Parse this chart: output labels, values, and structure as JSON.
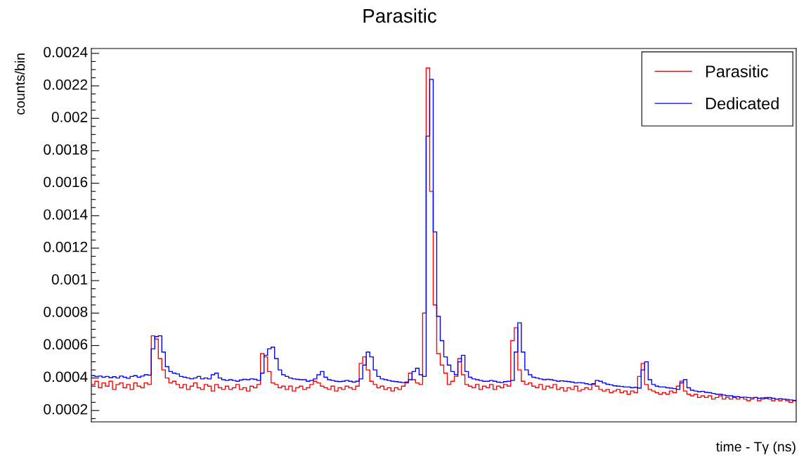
{
  "chart_data": {
    "type": "step",
    "title": "Parasitic",
    "xlabel": "time - Tγ (ns)",
    "ylabel": "counts/bin",
    "categories": [
      null,
      null,
      null,
      null,
      null,
      null,
      null,
      null,
      null,
      null,
      null,
      null,
      null,
      null,
      null,
      null,
      null,
      null,
      null,
      null,
      null,
      null,
      null,
      null,
      null,
      null,
      null,
      null,
      null,
      null,
      null,
      null,
      null,
      null,
      null,
      null,
      null,
      null,
      null,
      null,
      null,
      null,
      null,
      null,
      null,
      null,
      null,
      null,
      null,
      null,
      null,
      null,
      null,
      null,
      null,
      null,
      null,
      null,
      null,
      null,
      null,
      null,
      null,
      null,
      null,
      null,
      null,
      null,
      null,
      null,
      null,
      null,
      null,
      null,
      null,
      null,
      null,
      null,
      null,
      null,
      null,
      null,
      null,
      null,
      null,
      null,
      null,
      null,
      null,
      null,
      null,
      null,
      null,
      null,
      null,
      null,
      null,
      null,
      null,
      null,
      null,
      null,
      null,
      null,
      null,
      null,
      null,
      null,
      null,
      null,
      null,
      null,
      null,
      null,
      null,
      null,
      null,
      null,
      null,
      null,
      null,
      null,
      null,
      null,
      null,
      null,
      null,
      null,
      null,
      null,
      null,
      null,
      null,
      null,
      null,
      null,
      null,
      null,
      null,
      null,
      null,
      null,
      null,
      null,
      null,
      null,
      null,
      null,
      null,
      null,
      null,
      null,
      null,
      null,
      null,
      null,
      null,
      null,
      null,
      null,
      null,
      null,
      null,
      null,
      null,
      null,
      null,
      null,
      null,
      null,
      null,
      null,
      null,
      null,
      null,
      null,
      null,
      null,
      null,
      null,
      null,
      null,
      null,
      null,
      null,
      null,
      null,
      null,
      null,
      null,
      null,
      null,
      null,
      null,
      null,
      null,
      null,
      null,
      null,
      null
    ],
    "series": [
      {
        "name": "Parasitic",
        "color": "#ff0000",
        "values": [
          0.00036,
          0.00038,
          0.00034,
          0.00037,
          0.00035,
          0.00038,
          0.00033,
          0.00036,
          0.00037,
          0.00034,
          0.00036,
          0.00033,
          0.00037,
          0.00035,
          0.00034,
          0.00037,
          0.00036,
          0.00066,
          0.00064,
          0.00052,
          0.00045,
          0.0004,
          0.00037,
          0.00038,
          0.00036,
          0.00034,
          0.00036,
          0.00033,
          0.00035,
          0.00037,
          0.00034,
          0.00033,
          0.00036,
          0.00035,
          0.00032,
          0.00036,
          0.00034,
          0.00033,
          0.00035,
          0.00033,
          0.00034,
          0.00036,
          0.00033,
          0.00034,
          0.00032,
          0.00035,
          0.00034,
          0.00036,
          0.00055,
          0.00053,
          0.00044,
          0.00037,
          0.00036,
          0.00034,
          0.00035,
          0.00033,
          0.00035,
          0.00032,
          0.00034,
          0.00035,
          0.00033,
          0.00034,
          0.00036,
          0.00038,
          0.00037,
          0.00035,
          0.00034,
          0.00033,
          0.00035,
          0.00032,
          0.00034,
          0.00033,
          0.00035,
          0.00034,
          0.00033,
          0.00035,
          0.00049,
          0.00053,
          0.00045,
          0.00038,
          0.00036,
          0.00034,
          0.00035,
          0.00033,
          0.00034,
          0.00032,
          0.00034,
          0.00033,
          0.00035,
          0.00037,
          0.00043,
          0.00039,
          0.00037,
          0.00036,
          0.0008,
          0.00231,
          0.00155,
          0.00085,
          0.00055,
          0.00048,
          0.00043,
          0.00036,
          0.00038,
          0.00041,
          0.00052,
          0.00042,
          0.00036,
          0.00035,
          0.00034,
          0.00036,
          0.00033,
          0.00035,
          0.00034,
          0.00036,
          0.00033,
          0.00035,
          0.00034,
          0.00036,
          0.00035,
          0.00063,
          0.00071,
          0.00045,
          0.00038,
          0.00036,
          0.00037,
          0.00035,
          0.00034,
          0.00036,
          0.00033,
          0.00035,
          0.00034,
          0.00036,
          0.00033,
          0.00034,
          0.00032,
          0.00034,
          0.00033,
          0.00035,
          0.00032,
          0.00033,
          0.00034,
          0.00033,
          0.00036,
          0.00035,
          0.00033,
          0.00032,
          0.00033,
          0.00031,
          0.00032,
          0.00033,
          0.00031,
          0.00032,
          0.0003,
          0.00032,
          0.00031,
          0.00041,
          0.00049,
          0.00036,
          0.00033,
          0.00032,
          0.00031,
          0.0003,
          0.00031,
          0.0003,
          0.00032,
          0.00031,
          0.00035,
          0.00038,
          0.00032,
          0.0003,
          0.00029,
          0.0003,
          0.00028,
          0.00029,
          0.00028,
          0.00029,
          0.00027,
          0.00028,
          0.00029,
          0.00027,
          0.00028,
          0.00027,
          0.00028,
          0.00027,
          0.00028,
          0.00027,
          0.00026,
          0.00027,
          0.00028,
          0.00026,
          0.00027,
          0.00028,
          0.00027,
          0.00026,
          0.00027,
          0.00026,
          0.00027,
          0.00026,
          0.00025,
          0.00026
        ]
      },
      {
        "name": "Dedicated",
        "color": "#0000ff",
        "values": [
          0.000415,
          0.00041,
          0.000412,
          0.000405,
          0.00041,
          0.000402,
          0.000408,
          0.0004,
          0.000412,
          0.000405,
          0.000398,
          0.00041,
          0.000415,
          0.000405,
          0.000412,
          0.00042,
          0.000418,
          0.00058,
          0.000655,
          0.00066,
          0.00056,
          0.00047,
          0.00044,
          0.00043,
          0.000425,
          0.00041,
          0.000405,
          0.0004,
          0.000395,
          0.0004,
          0.00041,
          0.000395,
          0.0004,
          0.000395,
          0.00042,
          0.00043,
          0.0004,
          0.00039,
          0.000385,
          0.00039,
          0.000385,
          0.00038,
          0.000388,
          0.000392,
          0.00039,
          0.000395,
          0.000392,
          0.000385,
          0.00043,
          0.00054,
          0.00058,
          0.00059,
          0.00052,
          0.00045,
          0.00042,
          0.00041,
          0.0004,
          0.000395,
          0.000392,
          0.00039,
          0.00039,
          0.00038,
          0.000385,
          0.000395,
          0.00042,
          0.00044,
          0.000405,
          0.00039,
          0.000385,
          0.00038,
          0.000378,
          0.00038,
          0.000385,
          0.00038,
          0.000375,
          0.00038,
          0.000395,
          0.00048,
          0.00056,
          0.00053,
          0.00045,
          0.00041,
          0.000395,
          0.00039,
          0.000385,
          0.00038,
          0.000378,
          0.000375,
          0.000372,
          0.000375,
          0.00039,
          0.00044,
          0.00046,
          0.00042,
          0.00041,
          0.00189,
          0.00224,
          0.0013,
          0.00078,
          0.00063,
          0.00053,
          0.00048,
          0.00044,
          0.00042,
          0.0005,
          0.00054,
          0.00044,
          0.000405,
          0.000395,
          0.00039,
          0.000385,
          0.00038,
          0.00038,
          0.000385,
          0.00038,
          0.000375,
          0.000372,
          0.000378,
          0.00038,
          0.000385,
          0.00056,
          0.00074,
          0.00056,
          0.00045,
          0.00042,
          0.000405,
          0.0004,
          0.000395,
          0.00039,
          0.000392,
          0.00039,
          0.000385,
          0.00038,
          0.000383,
          0.00038,
          0.000378,
          0.000375,
          0.00037,
          0.000372,
          0.00037,
          0.000365,
          0.00036,
          0.000365,
          0.000385,
          0.00038,
          0.00037,
          0.000362,
          0.000358,
          0.000352,
          0.00035,
          0.000348,
          0.000345,
          0.000345,
          0.00034,
          0.000342,
          0.000338,
          0.00045,
          0.0005,
          0.00039,
          0.00036,
          0.00035,
          0.000345,
          0.000345,
          0.00034,
          0.000338,
          0.000335,
          0.00033,
          0.00037,
          0.00039,
          0.00034,
          0.000325,
          0.00032,
          0.000315,
          0.000318,
          0.000312,
          0.00031,
          0.000305,
          0.0003,
          0.0003,
          0.000295,
          0.00029,
          0.00029,
          0.000285,
          0.000285,
          0.00028,
          0.000282,
          0.00028,
          0.000278,
          0.00028,
          0.000275,
          0.000278,
          0.000275,
          0.00028,
          0.000275,
          0.00027,
          0.000272,
          0.00027,
          0.000268,
          0.000265,
          0.000262
        ]
      }
    ],
    "ylim": [
      0.00013,
      0.00243
    ],
    "yticks": [
      {
        "value": 0.00015,
        "label": null
      },
      0.0002,
      {
        "value": 0.00025,
        "label": null
      },
      {
        "value": 0.0003,
        "label": null
      },
      {
        "value": 0.00035,
        "label": null
      },
      0.0004,
      {
        "value": 0.00045,
        "label": null
      },
      {
        "value": 0.0005,
        "label": null
      },
      {
        "value": 0.00055,
        "label": null
      },
      0.0006,
      {
        "value": 0.00065,
        "label": null
      },
      {
        "value": 0.0007,
        "label": null
      },
      {
        "value": 0.00075,
        "label": null
      },
      0.0008,
      {
        "value": 0.00085,
        "label": null
      },
      {
        "value": 0.0009,
        "label": null
      },
      {
        "value": 0.00095,
        "label": null
      },
      0.001,
      {
        "value": 0.00105,
        "label": null
      },
      {
        "value": 0.0011,
        "label": null
      },
      {
        "value": 0.00115,
        "label": null
      },
      0.0012,
      {
        "value": 0.00125,
        "label": null
      },
      {
        "value": 0.0013,
        "label": null
      },
      {
        "value": 0.00135,
        "label": null
      },
      0.0014,
      {
        "value": 0.00145,
        "label": null
      },
      {
        "value": 0.0015,
        "label": null
      },
      {
        "value": 0.00155,
        "label": null
      },
      0.0016,
      {
        "value": 0.00165,
        "label": null
      },
      {
        "value": 0.0017,
        "label": null
      },
      {
        "value": 0.00175,
        "label": null
      },
      0.0018,
      {
        "value": 0.00185,
        "label": null
      },
      {
        "value": 0.0019,
        "label": null
      },
      {
        "value": 0.00195,
        "label": null
      },
      0.002,
      {
        "value": 0.00205,
        "label": null
      },
      {
        "value": 0.0021,
        "label": null
      },
      {
        "value": 0.00215,
        "label": null
      },
      0.0022,
      {
        "value": 0.00225,
        "label": null
      },
      {
        "value": 0.0023,
        "label": null
      },
      {
        "value": 0.00235,
        "label": null
      },
      0.0024
    ],
    "legend": "top right",
    "grid": false
  }
}
